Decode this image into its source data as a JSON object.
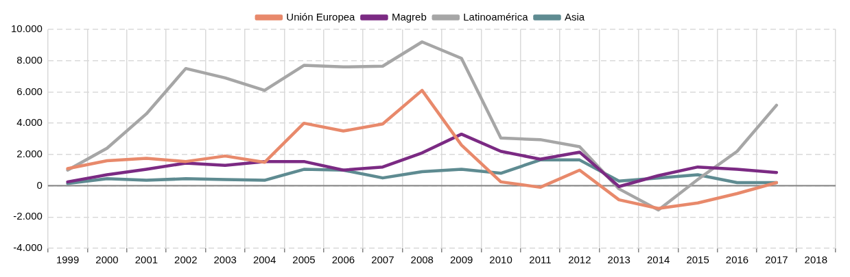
{
  "chart_data": {
    "type": "line",
    "categories": [
      "1999",
      "2000",
      "2001",
      "2002",
      "2003",
      "2004",
      "2005",
      "2006",
      "2007",
      "2008",
      "2009",
      "2010",
      "2011",
      "2012",
      "2013",
      "2014",
      "2015",
      "2016",
      "2017",
      "2018"
    ],
    "series": [
      {
        "name": "Unión Europea",
        "color": "#e8896b",
        "values": [
          1100,
          1600,
          1750,
          1550,
          1900,
          1500,
          4000,
          3500,
          3950,
          6100,
          2600,
          250,
          -100,
          1000,
          -900,
          -1450,
          -1100,
          -500,
          200,
          null
        ]
      },
      {
        "name": "Magreb",
        "color": "#7b2a83",
        "values": [
          250,
          700,
          1050,
          1450,
          1300,
          1550,
          1550,
          1000,
          1200,
          2100,
          3300,
          2200,
          1700,
          2150,
          -50,
          650,
          1200,
          1050,
          850,
          null
        ]
      },
      {
        "name": "Latinoamérica",
        "color": "#a6a6a6",
        "values": [
          1000,
          2400,
          4600,
          7500,
          6900,
          6100,
          7700,
          7600,
          7650,
          9200,
          8150,
          3050,
          2950,
          2500,
          -200,
          -1550,
          400,
          2200,
          5150,
          null
        ]
      },
      {
        "name": "Asia",
        "color": "#5e8b91",
        "values": [
          150,
          450,
          350,
          450,
          400,
          350,
          1050,
          1000,
          500,
          900,
          1050,
          800,
          1650,
          1650,
          300,
          500,
          700,
          200,
          200,
          null
        ]
      }
    ],
    "ylim": [
      -4000,
      10000
    ],
    "yticks": [
      {
        "value": -4000,
        "label": "-4.000"
      },
      {
        "value": -2000,
        "label": "-2.000"
      },
      0,
      {
        "value": 2000,
        "label": "2.000"
      },
      {
        "value": 4000,
        "label": "4.000"
      },
      {
        "value": 6000,
        "label": "6.000"
      },
      {
        "value": 8000,
        "label": "8.000"
      },
      {
        "value": 10000,
        "label": "10.000"
      }
    ],
    "ref_lines": [
      {
        "axis": "y",
        "value": 0,
        "color": "#808080"
      }
    ],
    "grid": true,
    "legend": "top",
    "marker": "none",
    "line_style": "solid"
  }
}
